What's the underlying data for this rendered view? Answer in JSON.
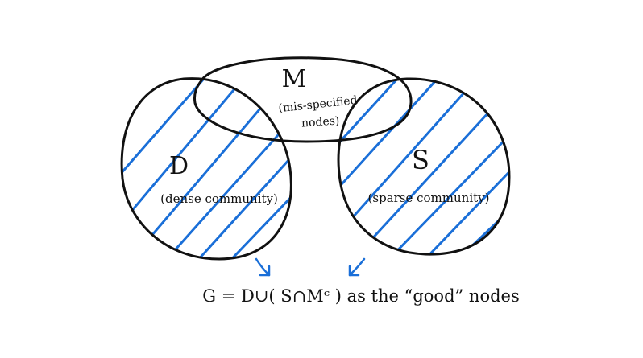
{
  "diagram": {
    "sets": {
      "M": {
        "letter": "M",
        "line1": "(mis-specified",
        "line2": "nodes)"
      },
      "D": {
        "letter": "D",
        "description": "(dense community)"
      },
      "S": {
        "letter": "S",
        "description": "(sparse community)"
      }
    },
    "formula": "G = D∪( S∩Mᶜ ) as the “good” nodes"
  },
  "colors": {
    "ink": "#111111",
    "hatch": "#1a6fd8",
    "background": "#ffffff"
  }
}
